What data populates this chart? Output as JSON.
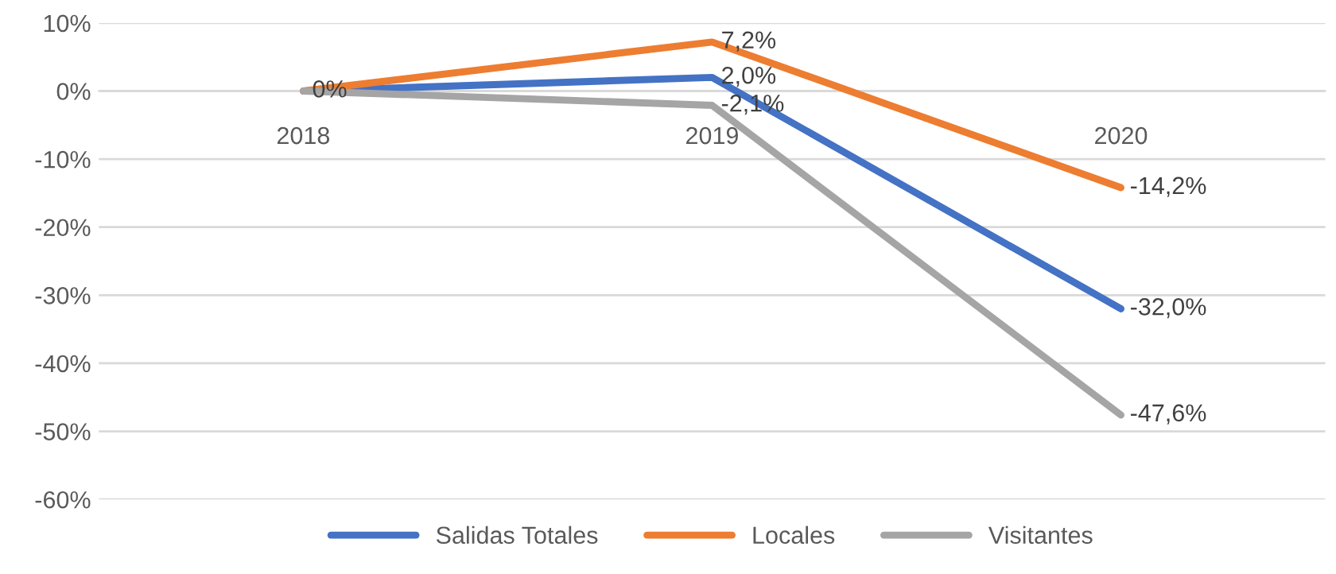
{
  "chart_data": {
    "type": "line",
    "categories": [
      "2018",
      "2019",
      "2020"
    ],
    "series": [
      {
        "name": "Salidas Totales",
        "color": "#4472c4",
        "values": [
          0,
          2.0,
          -32.0
        ],
        "value_labels": [
          null,
          "2,0%",
          "-32,0%"
        ]
      },
      {
        "name": "Locales",
        "color": "#ed7d31",
        "values": [
          0,
          7.2,
          -14.2
        ],
        "value_labels": [
          "0%",
          "7,2%",
          "-14,2%"
        ]
      },
      {
        "name": "Visitantes",
        "color": "#a5a5a5",
        "values": [
          0,
          -2.1,
          -47.6
        ],
        "value_labels": [
          null,
          "-2,1%",
          "-47,6%"
        ]
      }
    ],
    "ylim": [
      -60,
      10
    ],
    "yticks": [
      {
        "value": 10,
        "label": "10%"
      },
      {
        "value": 0,
        "label": "0%"
      },
      {
        "value": -10,
        "label": "-10%"
      },
      {
        "value": -20,
        "label": "-20%"
      },
      {
        "value": -30,
        "label": "-30%"
      },
      {
        "value": -40,
        "label": "-40%"
      },
      {
        "value": -50,
        "label": "-50%"
      },
      {
        "value": -60,
        "label": "-60%"
      }
    ],
    "grid": "y",
    "legend": "bottom",
    "marker": "none",
    "line_style": "solid"
  }
}
